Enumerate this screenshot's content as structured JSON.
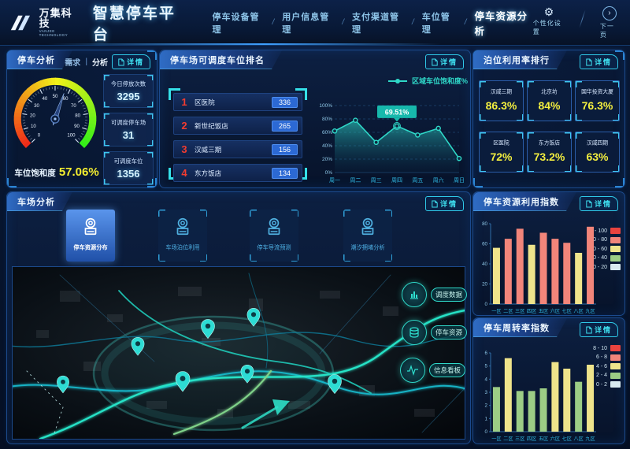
{
  "header": {
    "logo_title": "万集科技",
    "logo_subtitle": "VANJEE TECHNOLOGY",
    "app_title": "智慧停车平台",
    "nav_separator": "/",
    "nav": [
      {
        "label": "停车设备管理",
        "active": false
      },
      {
        "label": "用户信息管理",
        "active": false
      },
      {
        "label": "支付渠道管理",
        "active": false
      },
      {
        "label": "车位管理",
        "active": false
      },
      {
        "label": "停车资源分析",
        "active": true
      }
    ],
    "actions": [
      {
        "label": "个性化设置",
        "icon": "gear-icon",
        "glyph": "⚙"
      },
      {
        "label": "下一页",
        "icon": "next-page-icon",
        "glyph": "›"
      }
    ]
  },
  "parking_analysis": {
    "title": "停车分析",
    "tab_demand": "需求",
    "tab_divider": "|",
    "tab_analysis": "分析",
    "detail_label": "详情",
    "gauge": {
      "label": "车位饱和度",
      "value_text": "57.06%",
      "value": 57.06,
      "min": 0,
      "max": 100,
      "ticks": [
        0,
        10,
        20,
        30,
        40,
        50,
        60,
        70,
        80,
        90,
        100
      ]
    },
    "stats": [
      {
        "label": "今日停放次数",
        "value": "3295"
      },
      {
        "label": "可调度停车场",
        "value": "31"
      },
      {
        "label": "可调度车位",
        "value": "1356"
      }
    ]
  },
  "dispatch_ranking": {
    "title": "停车场可调度车位排名",
    "detail_label": "详情",
    "items": [
      {
        "rank": "1",
        "name": "区医院",
        "value": "336"
      },
      {
        "rank": "2",
        "name": "新世纪饭店",
        "value": "265"
      },
      {
        "rank": "3",
        "name": "汉威三期",
        "value": "156"
      },
      {
        "rank": "4",
        "name": "东方饭店",
        "value": "134"
      }
    ]
  },
  "utilization_ranking": {
    "title": "泊位利用率排行",
    "detail_label": "详情",
    "cards": [
      {
        "name": "汉威三期",
        "value": "86.3%"
      },
      {
        "name": "北京坊",
        "value": "84%"
      },
      {
        "name": "国华投资大厦",
        "value": "76.3%"
      },
      {
        "name": "区医院",
        "value": "72%"
      },
      {
        "name": "东方饭店",
        "value": "73.2%"
      },
      {
        "name": "汉威四期",
        "value": "63%"
      }
    ]
  },
  "lot_analysis": {
    "title": "车场分析",
    "detail_label": "详情",
    "tabs": [
      {
        "label": "停车资源分布",
        "active": true,
        "icon": "parking-meter-icon"
      },
      {
        "label": "车场泊位利用",
        "active": false,
        "icon": "parking-meter-icon"
      },
      {
        "label": "停车导流预测",
        "active": false,
        "icon": "parking-meter-icon"
      },
      {
        "label": "潮汐拥堵分析",
        "active": false,
        "icon": "parking-meter-icon"
      }
    ],
    "map_buttons": [
      {
        "label": "调度数据",
        "icon": "bar-chart-icon"
      },
      {
        "label": "停车资源",
        "icon": "database-icon"
      },
      {
        "label": "信息看板",
        "icon": "signal-icon"
      }
    ]
  },
  "chart_data": [
    {
      "id": "saturation_area",
      "type": "area",
      "title": "区域车位饱和度%",
      "legend_label": "区域车位饱和度%",
      "x": [
        "周一",
        "周二",
        "周三",
        "周四",
        "周五",
        "周六",
        "周日"
      ],
      "values": [
        62,
        78,
        45,
        69.51,
        56,
        66,
        21
      ],
      "ylim": [
        0,
        100
      ],
      "yticks": [
        0,
        20,
        40,
        60,
        80,
        100
      ],
      "ytick_suffix": "%",
      "annotation": {
        "index": 3,
        "label": "69.51%"
      },
      "line_color": "#2fd8c8",
      "grid": true,
      "legend_position": "top-right"
    },
    {
      "id": "resource_index",
      "type": "bar",
      "title": "停车资源利用指数",
      "categories": [
        "一区",
        "二区",
        "三区",
        "四区",
        "五区",
        "六区",
        "七区",
        "八区",
        "九区"
      ],
      "values": [
        56,
        65,
        75,
        59,
        71,
        65,
        61,
        51,
        77
      ],
      "ylim": [
        0,
        80
      ],
      "yticks": [
        0,
        20,
        40,
        60,
        80
      ],
      "legend_position": "right",
      "legend": [
        {
          "label": "80 - 100",
          "color": "#e9433f",
          "min": 80
        },
        {
          "label": "60 - 80",
          "color": "#f2857a",
          "min": 60
        },
        {
          "label": "40 - 60",
          "color": "#efe48b",
          "min": 40
        },
        {
          "label": "20 - 40",
          "color": "#9ccd85",
          "min": 20
        },
        {
          "label": "0 - 20",
          "color": "#d8eaf0",
          "min": 0
        }
      ]
    },
    {
      "id": "turnover_index",
      "type": "bar",
      "title": "停车周转率指数",
      "categories": [
        "一区",
        "二区",
        "三区",
        "四区",
        "五区",
        "六区",
        "七区",
        "八区",
        "九区"
      ],
      "values": [
        3.4,
        5.6,
        3.1,
        3.1,
        3.3,
        5.3,
        4.8,
        3.8,
        5.1
      ],
      "ylim": [
        0,
        6
      ],
      "yticks": [
        0,
        1,
        2,
        3,
        4,
        5,
        6
      ],
      "legend_position": "right",
      "legend": [
        {
          "label": "8 - 10",
          "color": "#e9433f",
          "min": 8
        },
        {
          "label": "6 - 8",
          "color": "#f2857a",
          "min": 6
        },
        {
          "label": "4 - 6",
          "color": "#efe48b",
          "min": 4
        },
        {
          "label": "2 - 4",
          "color": "#9ccd85",
          "min": 2
        },
        {
          "label": "0 - 2",
          "color": "#d8eaf0",
          "min": 0
        }
      ]
    }
  ],
  "colors": {
    "accent_cyan": "#35c9e8",
    "accent_teal": "#2fd8c8",
    "value_yellow": "#f2ee3f",
    "rank_red": "#f23c30",
    "badge_blue": "#2c69d4"
  }
}
